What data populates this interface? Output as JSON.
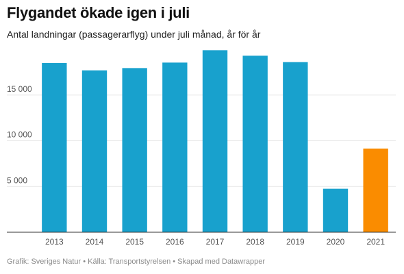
{
  "header": {
    "title": "Flygandet ökade igen i juli",
    "subtitle": "Antal landningar (passagerarflyg) under juli månad, år för år"
  },
  "footer": {
    "text": "Grafik: Sveriges Natur • Källa: Transportstyrelsen • Skapad med Datawrapper"
  },
  "colors": {
    "default_bar": "#18a1cd",
    "highlight_bar": "#fa8c00",
    "grid": "#e5e5e5",
    "axis": "#333333"
  },
  "chart_data": {
    "type": "bar",
    "title": "Flygandet ökade igen i juli",
    "subtitle": "Antal landningar (passagerarflyg) under juli månad, år för år",
    "xlabel": "",
    "ylabel": "",
    "categories": [
      "2013",
      "2014",
      "2015",
      "2016",
      "2017",
      "2018",
      "2019",
      "2020",
      "2021"
    ],
    "values": [
      18500,
      17700,
      17950,
      18550,
      19900,
      19300,
      18600,
      4750,
      9150
    ],
    "highlight": [
      "2021"
    ],
    "ylim": [
      0,
      20000
    ],
    "yticks": [
      5000,
      10000,
      15000
    ],
    "ytick_labels": [
      "5 000",
      "10 000",
      "15 000"
    ],
    "grid": true,
    "legend": "none"
  }
}
